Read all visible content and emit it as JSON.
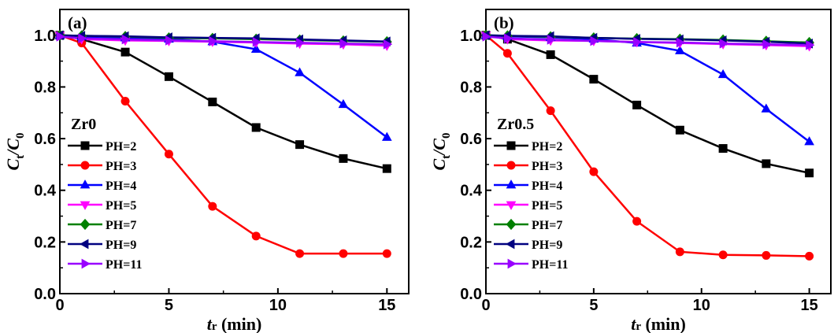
{
  "chart_data": [
    {
      "type": "line",
      "panel_label": "(a)",
      "legend_title": "Zr0",
      "legend_placement": "left",
      "x_label_main": "t",
      "x_label_sub": "r",
      "x_label_unit": " (min)",
      "y_label_main": "C",
      "y_label_sub1": "t",
      "y_label_slash": "/C",
      "y_label_sub2": "0",
      "xlim": [
        0,
        16
      ],
      "ylim": [
        0,
        1.1
      ],
      "xticks": [
        "0",
        "5",
        "10",
        "15"
      ],
      "yticks": [
        "0.0",
        "0.2",
        "0.4",
        "0.6",
        "0.8",
        "1.0"
      ],
      "grid": false,
      "x": [
        0,
        1,
        3,
        5,
        7,
        9,
        11,
        13,
        15
      ],
      "series": [
        {
          "name": "PH=2",
          "color": "#000000",
          "marker": "square",
          "values": [
            1.0,
            0.985,
            0.935,
            0.84,
            0.742,
            0.643,
            0.577,
            0.523,
            0.484
          ]
        },
        {
          "name": "PH=3",
          "color": "#ff0000",
          "marker": "circle",
          "values": [
            1.0,
            0.97,
            0.745,
            0.54,
            0.338,
            0.223,
            0.155,
            0.155,
            0.155
          ]
        },
        {
          "name": "PH=4",
          "color": "#0000ff",
          "marker": "triangle-up",
          "values": [
            1.0,
            0.995,
            0.99,
            0.985,
            0.975,
            0.946,
            0.855,
            0.732,
            0.605
          ]
        },
        {
          "name": "PH=5",
          "color": "#ff00ff",
          "marker": "triangle-down",
          "values": [
            1.0,
            0.985,
            0.98,
            0.978,
            0.975,
            0.972,
            0.968,
            0.965,
            0.96
          ]
        },
        {
          "name": "PH=7",
          "color": "#008000",
          "marker": "diamond",
          "values": [
            1.0,
            0.998,
            0.995,
            0.99,
            0.988,
            0.985,
            0.982,
            0.978,
            0.975
          ]
        },
        {
          "name": "PH=9",
          "color": "#000080",
          "marker": "triangle-left",
          "values": [
            1.0,
            0.998,
            0.996,
            0.992,
            0.99,
            0.988,
            0.984,
            0.98,
            0.976
          ]
        },
        {
          "name": "PH=11",
          "color": "#9900ff",
          "marker": "triangle-right",
          "values": [
            0.995,
            0.988,
            0.984,
            0.98,
            0.977,
            0.974,
            0.971,
            0.968,
            0.965
          ]
        }
      ]
    },
    {
      "type": "line",
      "panel_label": "(b)",
      "legend_title": "Zr0.5",
      "legend_placement": "left",
      "x_label_main": "t",
      "x_label_sub": "r",
      "x_label_unit": " (min)",
      "y_label_main": "C",
      "y_label_sub1": "t",
      "y_label_slash": "/C",
      "y_label_sub2": "0",
      "xlim": [
        0,
        16
      ],
      "ylim": [
        0,
        1.1
      ],
      "xticks": [
        "0",
        "5",
        "10",
        "15"
      ],
      "yticks": [
        "0.0",
        "0.2",
        "0.4",
        "0.6",
        "0.8",
        "1.0"
      ],
      "grid": false,
      "x": [
        0,
        1,
        3,
        5,
        7,
        9,
        11,
        13,
        15
      ],
      "series": [
        {
          "name": "PH=2",
          "color": "#000000",
          "marker": "square",
          "values": [
            1.0,
            0.985,
            0.925,
            0.83,
            0.73,
            0.633,
            0.562,
            0.503,
            0.467
          ]
        },
        {
          "name": "PH=3",
          "color": "#ff0000",
          "marker": "circle",
          "values": [
            1.0,
            0.93,
            0.708,
            0.472,
            0.28,
            0.162,
            0.15,
            0.148,
            0.145
          ]
        },
        {
          "name": "PH=4",
          "color": "#0000ff",
          "marker": "triangle-up",
          "values": [
            1.0,
            0.996,
            0.992,
            0.985,
            0.97,
            0.94,
            0.848,
            0.715,
            0.588
          ]
        },
        {
          "name": "PH=5",
          "color": "#ff00ff",
          "marker": "triangle-down",
          "values": [
            1.0,
            0.985,
            0.98,
            0.978,
            0.974,
            0.97,
            0.966,
            0.962,
            0.958
          ]
        },
        {
          "name": "PH=7",
          "color": "#008000",
          "marker": "diamond",
          "values": [
            1.0,
            0.998,
            0.994,
            0.99,
            0.987,
            0.985,
            0.982,
            0.977,
            0.972
          ]
        },
        {
          "name": "PH=9",
          "color": "#000080",
          "marker": "triangle-left",
          "values": [
            1.0,
            0.998,
            0.996,
            0.99,
            0.986,
            0.984,
            0.98,
            0.975,
            0.968
          ]
        },
        {
          "name": "PH=11",
          "color": "#9900ff",
          "marker": "triangle-right",
          "values": [
            0.995,
            0.988,
            0.983,
            0.978,
            0.974,
            0.972,
            0.968,
            0.965,
            0.962
          ]
        }
      ]
    }
  ]
}
